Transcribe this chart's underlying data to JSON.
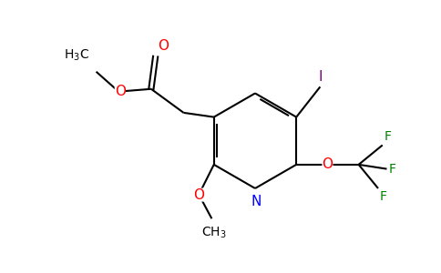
{
  "background_color": "#ffffff",
  "figsize": [
    4.84,
    3.0
  ],
  "dpi": 100,
  "bond_color": "#000000",
  "oxygen_color": "#ff0000",
  "nitrogen_color": "#0000ff",
  "iodine_color": "#800080",
  "fluorine_color": "#008000",
  "line_width": 1.5,
  "font_size": 10,
  "xlim": [
    0,
    10
  ],
  "ylim": [
    0,
    6.2
  ]
}
